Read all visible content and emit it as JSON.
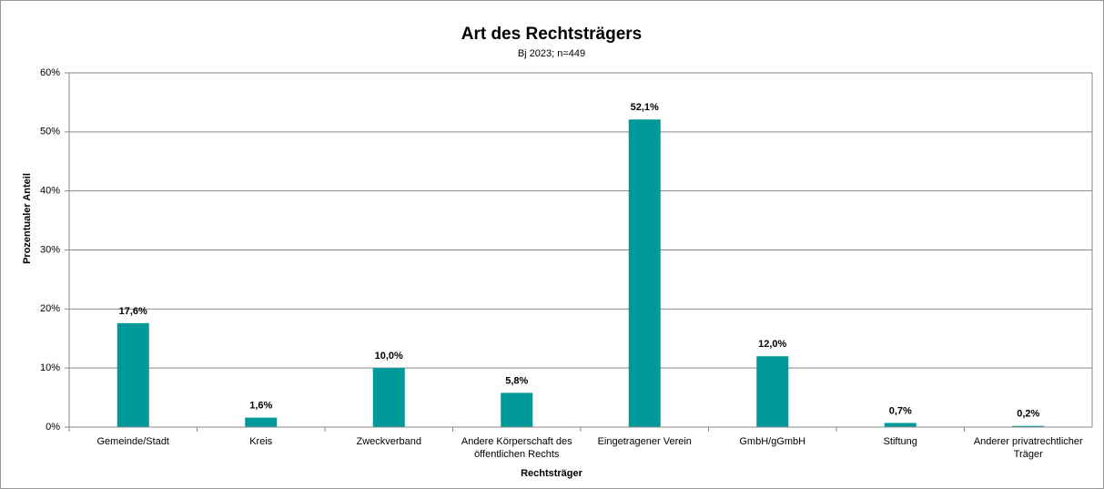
{
  "chart_data": {
    "type": "bar",
    "title": "Art des Rechtsträgers",
    "subtitle": "Bj 2023; n=449",
    "x_label": "Rechtsträger",
    "y_label": "Prozentualer Anteil",
    "categories": [
      "Gemeinde/Stadt",
      "Kreis",
      "Zweckverband",
      "Andere Körperschaft des öffentlichen Rechts",
      "Eingetragener Verein",
      "GmbH/gGmbH",
      "Stiftung",
      "Anderer privatrechtlicher Träger"
    ],
    "values": [
      17.6,
      1.6,
      10.0,
      5.8,
      52.1,
      12.0,
      0.7,
      0.2
    ],
    "value_labels": [
      "17,6%",
      "1,6%",
      "10,0%",
      "5,8%",
      "52,1%",
      "12,0%",
      "0,7%",
      "0,2%"
    ],
    "color": "#009999",
    "ylim": [
      0,
      60
    ],
    "yticks": [
      {
        "value": 0,
        "label": "0%"
      },
      {
        "value": 10,
        "label": "10%"
      },
      {
        "value": 20,
        "label": "20%"
      },
      {
        "value": 30,
        "label": "30%"
      },
      {
        "value": 40,
        "label": "40%"
      },
      {
        "value": 50,
        "label": "50%"
      },
      {
        "value": 60,
        "label": "60%"
      }
    ],
    "grid": true
  }
}
